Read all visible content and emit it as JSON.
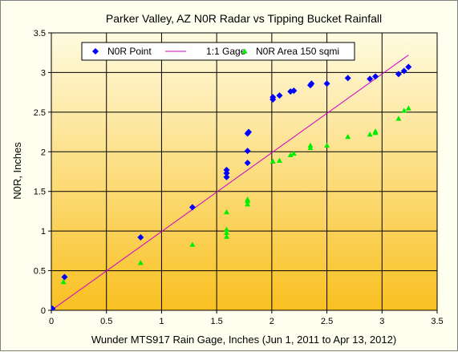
{
  "chart_data": {
    "type": "scatter",
    "title": "Parker Valley, AZ N0R Radar vs Tipping Bucket Rainfall",
    "xlabel": "Wunder MTS917 Rain Gage, Inches (Jun 1, 2011 to Apr 13, 2012)",
    "ylabel": "N0R, Inches",
    "xlim": [
      0,
      3.5
    ],
    "ylim": [
      0,
      3.5
    ],
    "xticks": [
      "0",
      "0.5",
      "1",
      "1.5",
      "2",
      "2.5",
      "3",
      "3.5"
    ],
    "yticks": [
      "0",
      "0.5",
      "1",
      "1.5",
      "2",
      "2.5",
      "3",
      "3.5"
    ],
    "grid": true,
    "legend_position": "top",
    "plot_background": [
      "#fffbe0",
      "#f9c020"
    ],
    "series": [
      {
        "name": "N0R Point",
        "color": "#0000ff",
        "marker": "diamond",
        "points": [
          [
            0.01,
            0.02
          ],
          [
            0.12,
            0.42
          ],
          [
            0.81,
            0.92
          ],
          [
            1.28,
            1.3
          ],
          [
            1.59,
            1.68
          ],
          [
            1.59,
            1.73
          ],
          [
            1.59,
            1.77
          ],
          [
            1.78,
            1.86
          ],
          [
            1.78,
            2.01
          ],
          [
            1.78,
            2.23
          ],
          [
            1.79,
            2.25
          ],
          [
            2.01,
            2.66
          ],
          [
            2.01,
            2.69
          ],
          [
            2.07,
            2.71
          ],
          [
            2.17,
            2.76
          ],
          [
            2.2,
            2.77
          ],
          [
            2.35,
            2.84
          ],
          [
            2.36,
            2.86
          ],
          [
            2.5,
            2.86
          ],
          [
            2.69,
            2.93
          ],
          [
            2.89,
            2.92
          ],
          [
            2.94,
            2.95
          ],
          [
            3.15,
            2.98
          ],
          [
            3.2,
            3.02
          ],
          [
            3.24,
            3.07
          ]
        ]
      },
      {
        "name": "1:1 Gage",
        "color": "#cc00cc",
        "marker": "line",
        "points": [
          [
            0,
            0
          ],
          [
            3.24,
            3.22
          ]
        ]
      },
      {
        "name": "N0R Area 150 sqmi",
        "color": "#00ee00",
        "marker": "triangle",
        "points": [
          [
            0.01,
            0.03
          ],
          [
            0.11,
            0.36
          ],
          [
            0.81,
            0.6
          ],
          [
            1.28,
            0.83
          ],
          [
            1.59,
            0.93
          ],
          [
            1.59,
            0.98
          ],
          [
            1.59,
            1.02
          ],
          [
            1.59,
            1.24
          ],
          [
            1.78,
            1.34
          ],
          [
            1.78,
            1.38
          ],
          [
            1.78,
            1.4
          ],
          [
            2.01,
            1.88
          ],
          [
            2.07,
            1.89
          ],
          [
            2.17,
            1.96
          ],
          [
            2.2,
            1.98
          ],
          [
            2.35,
            2.05
          ],
          [
            2.35,
            2.08
          ],
          [
            2.5,
            2.08
          ],
          [
            2.69,
            2.19
          ],
          [
            2.89,
            2.22
          ],
          [
            2.94,
            2.24
          ],
          [
            2.94,
            2.26
          ],
          [
            3.15,
            2.42
          ],
          [
            3.2,
            2.52
          ],
          [
            3.24,
            2.55
          ]
        ]
      }
    ]
  }
}
